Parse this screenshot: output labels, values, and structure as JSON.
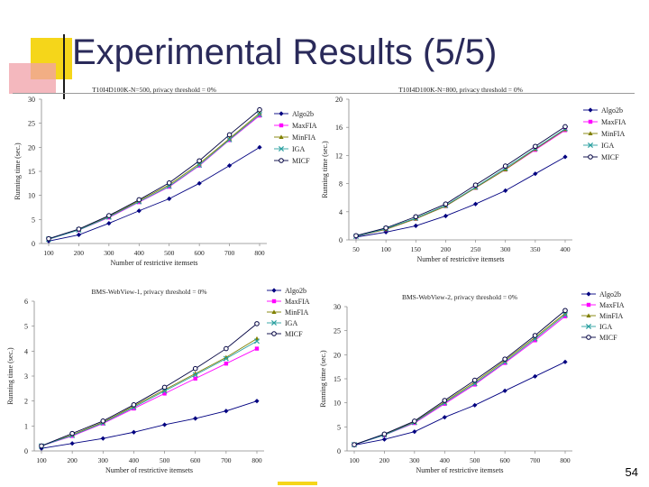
{
  "slide": {
    "title": "Experimental Results (5/5)",
    "page_number": "54"
  },
  "colors": {
    "title": "#2a2a5a",
    "accent_yellow": "#f5d61a",
    "accent_pink": "#f0a0a8"
  },
  "chart_data": [
    {
      "type": "line",
      "title": "T10I4D100K-N=500, privacy threshold = 0%",
      "xlabel": "Number of restrictive itemsets",
      "ylabel": "Running time (sec.)",
      "categories": [
        "100",
        "200",
        "300",
        "400",
        "500",
        "600",
        "700",
        "800"
      ],
      "ylim": [
        0,
        30
      ],
      "yticks": [
        0,
        5,
        10,
        15,
        20,
        25,
        30
      ],
      "legend_position": "right",
      "series": [
        {
          "name": "Algo2b",
          "color": "#000080",
          "marker": "diamond",
          "values": [
            0.5,
            1.8,
            4.2,
            6.8,
            9.3,
            12.5,
            16.2,
            20
          ]
        },
        {
          "name": "MaxFIA",
          "color": "#ff00ff",
          "marker": "square",
          "values": [
            0.9,
            2.8,
            5.4,
            8.6,
            11.8,
            16.2,
            21.5,
            26.6
          ]
        },
        {
          "name": "MinFIA",
          "color": "#808000",
          "marker": "triangle",
          "values": [
            0.9,
            2.9,
            5.6,
            8.9,
            12.2,
            16.6,
            21.8,
            27.1
          ]
        },
        {
          "name": "IGA",
          "color": "#2aa0a0",
          "marker": "x",
          "values": [
            0.9,
            2.8,
            5.5,
            8.7,
            11.9,
            16.3,
            21.6,
            26.8
          ]
        },
        {
          "name": "MICF",
          "color": "#000040",
          "marker": "circle",
          "values": [
            1.0,
            3.0,
            5.8,
            9.1,
            12.6,
            17.2,
            22.6,
            27.8
          ]
        }
      ]
    },
    {
      "type": "line",
      "title": "T10I4D100K-N=800, privacy threshold = 0%",
      "xlabel": "Number of restrictive itemsets",
      "ylabel": "Running time (sec.)",
      "categories": [
        "50",
        "100",
        "150",
        "200",
        "250",
        "300",
        "350",
        "400"
      ],
      "ylim": [
        0,
        20
      ],
      "yticks": [
        0,
        4,
        8,
        12,
        16,
        20
      ],
      "legend_position": "right",
      "series": [
        {
          "name": "Algo2b",
          "color": "#000080",
          "marker": "diamond",
          "values": [
            0.4,
            1.1,
            2.0,
            3.4,
            5.1,
            7.0,
            9.4,
            11.8
          ]
        },
        {
          "name": "MaxFIA",
          "color": "#ff00ff",
          "marker": "square",
          "values": [
            0.5,
            1.5,
            3.0,
            4.8,
            7.4,
            10.0,
            12.8,
            15.6
          ]
        },
        {
          "name": "MinFIA",
          "color": "#808000",
          "marker": "triangle",
          "values": [
            0.5,
            1.5,
            3.0,
            4.8,
            7.4,
            10.0,
            12.9,
            15.7
          ]
        },
        {
          "name": "IGA",
          "color": "#2aa0a0",
          "marker": "x",
          "values": [
            0.5,
            1.6,
            3.1,
            4.9,
            7.5,
            10.2,
            13.0,
            15.8
          ]
        },
        {
          "name": "MICF",
          "color": "#000040",
          "marker": "circle",
          "values": [
            0.6,
            1.7,
            3.3,
            5.1,
            7.8,
            10.5,
            13.3,
            16.1
          ]
        }
      ]
    },
    {
      "type": "line",
      "title": "BMS-WebView-1, privacy threshold = 0%",
      "xlabel": "Number of restrictive itemsets",
      "ylabel": "Running time (sec.)",
      "categories": [
        "100",
        "200",
        "300",
        "400",
        "500",
        "600",
        "700",
        "800"
      ],
      "ylim": [
        0,
        6
      ],
      "yticks": [
        0,
        1,
        2,
        3,
        4,
        5,
        6
      ],
      "legend_position": "right",
      "series": [
        {
          "name": "Algo2b",
          "color": "#000080",
          "marker": "diamond",
          "values": [
            0.1,
            0.3,
            0.5,
            0.75,
            1.05,
            1.3,
            1.6,
            2.0
          ]
        },
        {
          "name": "MaxFIA",
          "color": "#ff00ff",
          "marker": "square",
          "values": [
            0.2,
            0.6,
            1.1,
            1.7,
            2.3,
            2.9,
            3.5,
            4.1
          ]
        },
        {
          "name": "MinFIA",
          "color": "#808000",
          "marker": "triangle",
          "values": [
            0.2,
            0.65,
            1.15,
            1.8,
            2.45,
            3.1,
            3.75,
            4.5
          ]
        },
        {
          "name": "IGA",
          "color": "#2aa0a0",
          "marker": "x",
          "values": [
            0.2,
            0.62,
            1.12,
            1.75,
            2.4,
            3.05,
            3.7,
            4.4
          ]
        },
        {
          "name": "MICF",
          "color": "#000040",
          "marker": "circle",
          "values": [
            0.2,
            0.7,
            1.2,
            1.85,
            2.55,
            3.3,
            4.1,
            5.1
          ]
        }
      ]
    },
    {
      "type": "line",
      "title": "BMS-WebView-2, privacy threshold = 0%",
      "xlabel": "Number of restrictive itemsets",
      "ylabel": "Running time (sec.)",
      "categories": [
        "100",
        "200",
        "300",
        "400",
        "500",
        "600",
        "700",
        "800"
      ],
      "ylim": [
        0,
        30
      ],
      "yticks": [
        0,
        5,
        10,
        15,
        20,
        25,
        30
      ],
      "legend_position": "right",
      "series": [
        {
          "name": "Algo2b",
          "color": "#000080",
          "marker": "diamond",
          "values": [
            1.2,
            2.4,
            4.0,
            7.0,
            9.5,
            12.5,
            15.5,
            18.5
          ]
        },
        {
          "name": "MaxFIA",
          "color": "#ff00ff",
          "marker": "square",
          "values": [
            1.3,
            3.3,
            5.8,
            9.8,
            13.8,
            18.3,
            23.0,
            28.0
          ]
        },
        {
          "name": "MinFIA",
          "color": "#808000",
          "marker": "triangle",
          "values": [
            1.3,
            3.4,
            6.0,
            10.2,
            14.3,
            18.8,
            23.6,
            28.6
          ]
        },
        {
          "name": "IGA",
          "color": "#2aa0a0",
          "marker": "x",
          "values": [
            1.3,
            3.3,
            5.9,
            10.0,
            14.0,
            18.5,
            23.3,
            28.3
          ]
        },
        {
          "name": "MICF",
          "color": "#000040",
          "marker": "circle",
          "values": [
            1.3,
            3.5,
            6.2,
            10.5,
            14.7,
            19.1,
            24.0,
            29.2
          ]
        }
      ]
    }
  ]
}
